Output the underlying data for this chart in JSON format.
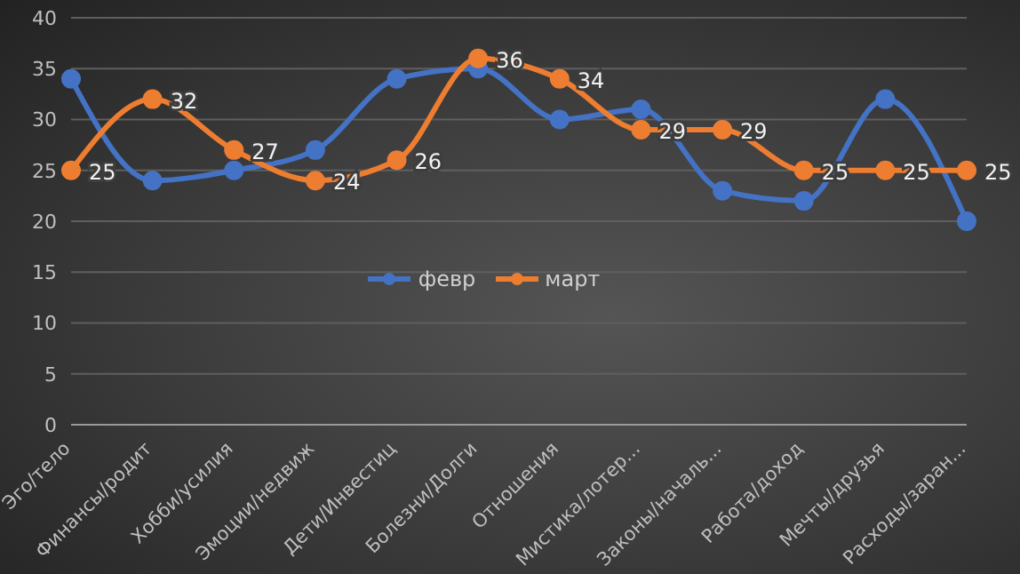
{
  "chart_data": {
    "type": "line",
    "categories": [
      "Эго/тело",
      "Финансы/родит",
      "Хобби/усилия",
      "Эмоции/недвиж",
      "Дети/Инвестиц",
      "Болезни/Долги",
      "Отношения",
      "Мистика/лотер...",
      "Законы/началь...",
      "Работа/доход",
      "Мечты/друзья",
      "Расходы/заран..."
    ],
    "series": [
      {
        "name": "февр",
        "color": "#4472c4",
        "values": [
          34,
          24,
          25,
          27,
          34,
          35,
          30,
          31,
          23,
          22,
          32,
          20
        ]
      },
      {
        "name": "март",
        "color": "#ed7d31",
        "values": [
          25,
          32,
          27,
          24,
          26,
          36,
          34,
          29,
          29,
          25,
          25,
          25
        ],
        "value_labels": [
          "25",
          "32",
          "27",
          "24",
          "26",
          "36",
          "34",
          "29",
          "29",
          "25",
          "25",
          "25"
        ]
      }
    ],
    "ylim": [
      0,
      40
    ],
    "yticks": [
      0,
      5,
      10,
      15,
      20,
      25,
      30,
      35,
      40
    ],
    "grid": "y",
    "legend": "center",
    "marker": "circle",
    "line_style": "solid"
  }
}
